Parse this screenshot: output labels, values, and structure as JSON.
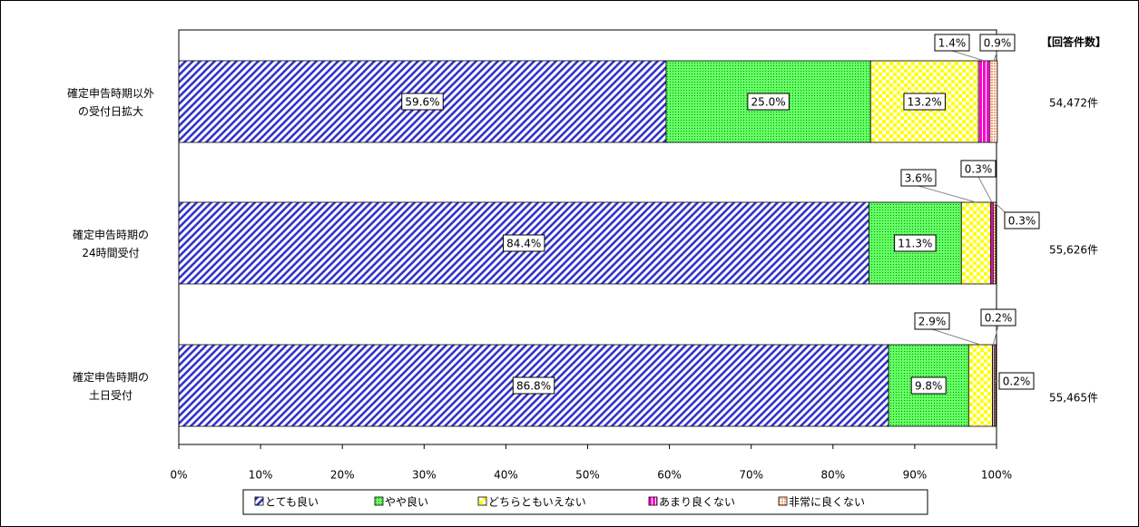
{
  "chart_data": {
    "type": "stacked_bar_horizontal",
    "categories": [
      [
        "確定申告時期以外",
        "の受付日拡大"
      ],
      [
        "確定申告時期の",
        "24時間受付"
      ],
      [
        "確定申告時期の",
        "土日受付"
      ]
    ],
    "series": [
      {
        "name": "とても良い",
        "color": "#3333cc",
        "values": [
          59.6,
          84.4,
          86.8
        ],
        "value_labels": [
          "59.6%",
          "84.4%",
          "86.8%"
        ]
      },
      {
        "name": "やや良い",
        "color": "#33cc33",
        "values": [
          25.0,
          11.3,
          9.8
        ],
        "value_labels": [
          "25.0%",
          "11.3%",
          "9.8%"
        ]
      },
      {
        "name": "どちらともいえない",
        "color": "#ffff00",
        "values": [
          13.2,
          3.6,
          2.9
        ],
        "value_labels": [
          "13.2%",
          "3.6%",
          "2.9%"
        ]
      },
      {
        "name": "あまり良くない",
        "color": "#ff00cc",
        "values": [
          1.4,
          0.3,
          0.2
        ],
        "value_labels": [
          "1.4%",
          "0.3%",
          "0.2%"
        ]
      },
      {
        "name": "非常に良くない",
        "color": "#ff9966",
        "values": [
          0.9,
          0.3,
          0.2
        ],
        "value_labels": [
          "0.9%",
          "0.3%",
          "0.2%"
        ]
      }
    ],
    "xlim": [
      0,
      100
    ],
    "xticks": [
      {
        "value": 0,
        "label": "0%"
      },
      {
        "value": 10,
        "label": "10%"
      },
      {
        "value": 20,
        "label": "20%"
      },
      {
        "value": 30,
        "label": "30%"
      },
      {
        "value": 40,
        "label": "40%"
      },
      {
        "value": 50,
        "label": "50%"
      },
      {
        "value": 60,
        "label": "60%"
      },
      {
        "value": 70,
        "label": "70%"
      },
      {
        "value": 80,
        "label": "80%"
      },
      {
        "value": 90,
        "label": "90%"
      },
      {
        "value": 100,
        "label": "100%"
      }
    ],
    "counts_title": "【回答件数】",
    "counts": [
      "54,472件",
      "55,626件",
      "55,465件"
    ],
    "legend": "bottom"
  }
}
